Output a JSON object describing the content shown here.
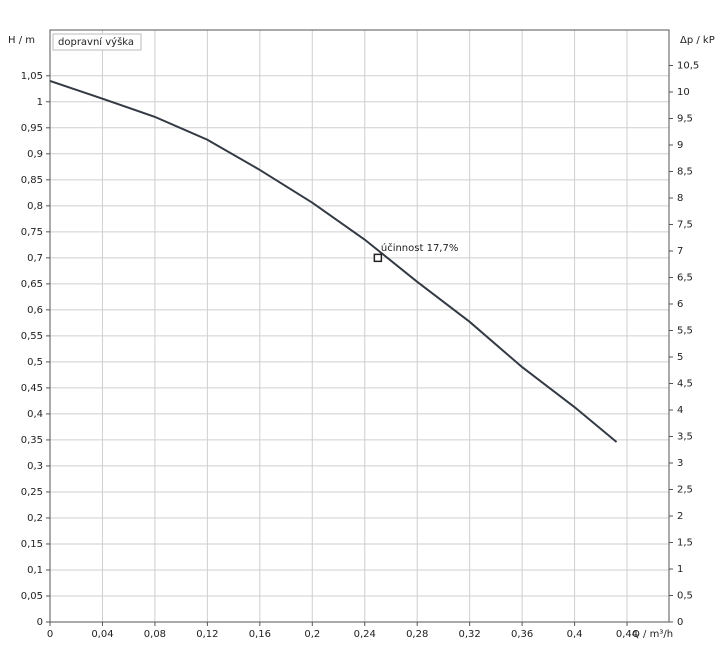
{
  "chart_data": {
    "type": "line",
    "title": "dopravní výška",
    "y_label": "H / m",
    "y2_label": "Δp / kP",
    "x_label": "Q / m³/h",
    "x": [
      0,
      0.04,
      0.08,
      0.12,
      0.16,
      0.2,
      0.24,
      0.28,
      0.32,
      0.36,
      0.4,
      0.432
    ],
    "series": [
      {
        "name": "dopravní výška",
        "color": "#333a44",
        "values": [
          1.04,
          1.006,
          0.971,
          0.927,
          0.869,
          0.806,
          0.735,
          0.654,
          0.577,
          0.49,
          0.413,
          0.346
        ]
      }
    ],
    "annotation": {
      "text": "účinnost  17,7%",
      "x": 0.25,
      "y": 0.7
    },
    "xlim": [
      0,
      0.472
    ],
    "ylim": [
      0,
      1.138
    ],
    "y2lim": [
      0,
      11.17
    ],
    "xticks": [
      0,
      {
        "value": 0.04,
        "label": "0,04"
      },
      {
        "value": 0.08,
        "label": "0,08"
      },
      {
        "value": 0.12,
        "label": "0,12"
      },
      {
        "value": 0.16,
        "label": "0,16"
      },
      {
        "value": 0.2,
        "label": "0,2"
      },
      {
        "value": 0.24,
        "label": "0,24"
      },
      {
        "value": 0.28,
        "label": "0,28"
      },
      {
        "value": 0.32,
        "label": "0,32"
      },
      {
        "value": 0.36,
        "label": "0,36"
      },
      {
        "value": 0.4,
        "label": "0,4"
      },
      {
        "value": 0.44,
        "label": "0,44"
      }
    ],
    "yticks": [
      0,
      {
        "value": 0.05,
        "label": "0,05"
      },
      {
        "value": 0.1,
        "label": "0,1"
      },
      {
        "value": 0.15,
        "label": "0,15"
      },
      {
        "value": 0.2,
        "label": "0,2"
      },
      {
        "value": 0.25,
        "label": "0,25"
      },
      {
        "value": 0.3,
        "label": "0,3"
      },
      {
        "value": 0.35,
        "label": "0,35"
      },
      {
        "value": 0.4,
        "label": "0,4"
      },
      {
        "value": 0.45,
        "label": "0,45"
      },
      {
        "value": 0.5,
        "label": "0,5"
      },
      {
        "value": 0.55,
        "label": "0,55"
      },
      {
        "value": 0.6,
        "label": "0,6"
      },
      {
        "value": 0.65,
        "label": "0,65"
      },
      {
        "value": 0.7,
        "label": "0,7"
      },
      {
        "value": 0.75,
        "label": "0,75"
      },
      {
        "value": 0.8,
        "label": "0,8"
      },
      {
        "value": 0.85,
        "label": "0,85"
      },
      {
        "value": 0.9,
        "label": "0,9"
      },
      {
        "value": 0.95,
        "label": "0,95"
      },
      1,
      {
        "value": 1.05,
        "label": "1,05"
      }
    ],
    "y2ticks": [
      0,
      {
        "value": 0.5,
        "label": "0,5"
      },
      1,
      {
        "value": 1.5,
        "label": "1,5"
      },
      2,
      {
        "value": 2.5,
        "label": "2,5"
      },
      3,
      {
        "value": 3.5,
        "label": "3,5"
      },
      4,
      {
        "value": 4.5,
        "label": "4,5"
      },
      5,
      {
        "value": 5.5,
        "label": "5,5"
      },
      6,
      {
        "value": 6.5,
        "label": "6,5"
      },
      7,
      {
        "value": 7.5,
        "label": "7,5"
      },
      8,
      {
        "value": 8.5,
        "label": "8,5"
      },
      9,
      {
        "value": 9.5,
        "label": "9,5"
      },
      10,
      {
        "value": 10.5,
        "label": "10,5"
      }
    ],
    "grid": true
  }
}
